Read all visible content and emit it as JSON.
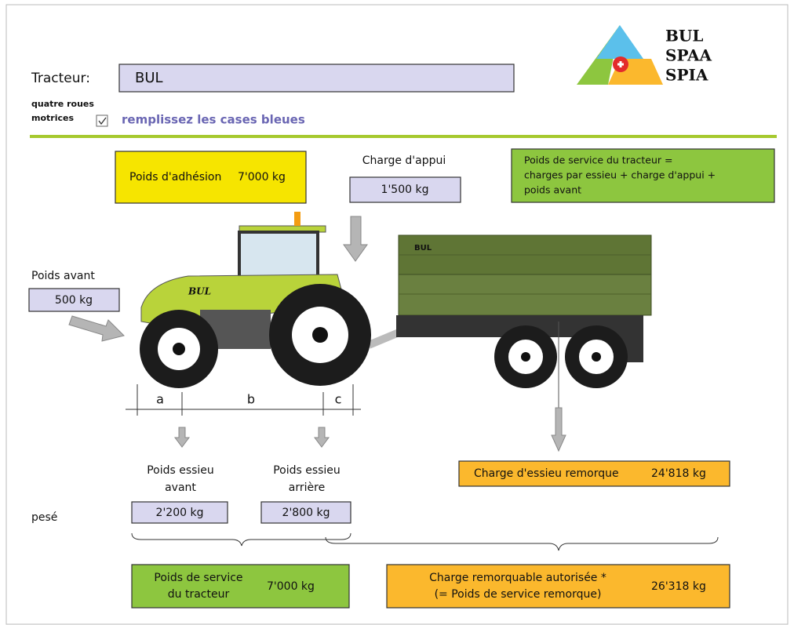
{
  "header": {
    "tractor_label": "Tracteur:",
    "tractor_value": "BUL",
    "four_wd_label": [
      "quatre roues",
      "motrices"
    ],
    "four_wd_checked": true,
    "instruction": "remplissez les cases bleues"
  },
  "logo": [
    "BUL",
    "SPAA",
    "SPIA"
  ],
  "adhesion": {
    "label": "Poids d'adhésion",
    "value": "7'000 kg"
  },
  "support_load": {
    "label": "Charge d'appui",
    "value": "1'500 kg"
  },
  "service_note": [
    "Poids de service du tracteur =",
    "charges par essieu + charge d'appui +",
    "poids avant"
  ],
  "front_weight": {
    "label": "Poids avant",
    "value": "500 kg"
  },
  "illustration": {
    "tractor_brand": "BUL",
    "trailer_brand": "BUL"
  },
  "dimensions": [
    "a",
    "b",
    "c"
  ],
  "front_axle": {
    "label": [
      "Poids essieu",
      "avant"
    ],
    "value": "2'200 kg"
  },
  "rear_axle": {
    "label": [
      "Poids essieu",
      "arrière"
    ],
    "value": "2'800 kg"
  },
  "weighed_label": "pesé",
  "trailer_axle": {
    "label": "Charge d'essieu remorque",
    "value": "24'818 kg"
  },
  "tractor_service": {
    "label": [
      "Poids de service",
      "du tracteur"
    ],
    "value": "7'000 kg"
  },
  "towable": {
    "label": [
      "Charge remorquable autorisée *",
      "(= Poids de service remorque)"
    ],
    "value": "26'318 kg"
  }
}
